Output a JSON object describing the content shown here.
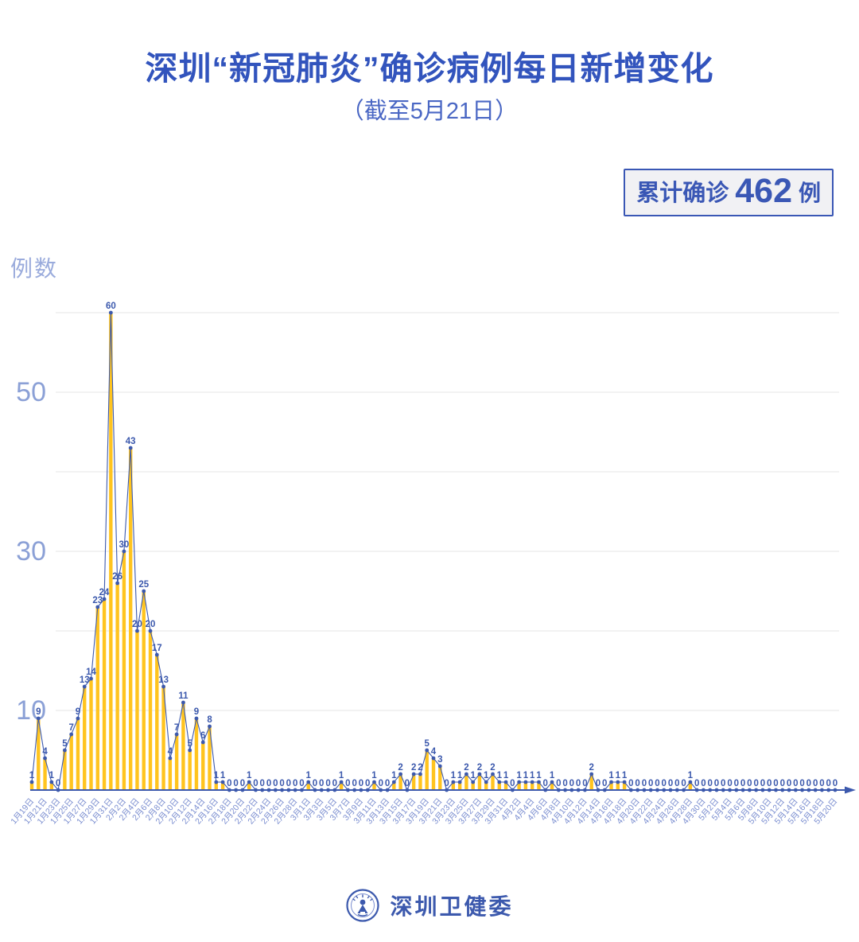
{
  "title": "深圳“新冠肺炎”确诊病例每日新增变化",
  "subtitle": "（截至5月21日）",
  "badge": {
    "prefix": "累计确诊",
    "value": "462",
    "suffix": "例"
  },
  "y_axis_title": "例数",
  "footer": {
    "org_name": "深圳卫健委",
    "logo": "shenzhen-health-commission-emblem"
  },
  "colors": {
    "title_blue": "#3254bd",
    "accent_blue": "#3c59ad",
    "bar_yellow": "#ffc41f",
    "x_label_blue": "#7b8ed0",
    "y_tick_blue": "#8ba0d6",
    "grid_gray": "#eaeaea",
    "badge_bg": "#f1f1f4",
    "badge_border": "#3a57b5"
  },
  "chart_data": {
    "type": "bar",
    "line_overlay": true,
    "title": "深圳“新冠肺炎”确诊病例每日新增变化（截至5月21日）",
    "xlabel": "",
    "ylabel": "例数",
    "ylim": [
      0,
      63
    ],
    "yticks": [
      10,
      30,
      50
    ],
    "gridlines": [
      10,
      20,
      30,
      40,
      50,
      60
    ],
    "legend": "none",
    "x_tick_label_every": 2,
    "total_label": "累计确诊 462 例",
    "categories": [
      "1月19日",
      "1月20日",
      "1月21日",
      "1月22日",
      "1月23日",
      "1月24日",
      "1月25日",
      "1月26日",
      "1月27日",
      "1月28日",
      "1月29日",
      "1月30日",
      "1月31日",
      "2月1日",
      "2月2日",
      "2月3日",
      "2月4日",
      "2月5日",
      "2月6日",
      "2月7日",
      "2月8日",
      "2月9日",
      "2月10日",
      "2月11日",
      "2月12日",
      "2月13日",
      "2月14日",
      "2月15日",
      "2月16日",
      "2月17日",
      "2月18日",
      "2月19日",
      "2月20日",
      "2月21日",
      "2月22日",
      "2月23日",
      "2月24日",
      "2月25日",
      "2月26日",
      "2月27日",
      "2月28日",
      "2月29日",
      "3月1日",
      "3月2日",
      "3月3日",
      "3月4日",
      "3月5日",
      "3月6日",
      "3月7日",
      "3月8日",
      "3月9日",
      "3月10日",
      "3月11日",
      "3月12日",
      "3月13日",
      "3月14日",
      "3月15日",
      "3月16日",
      "3月17日",
      "3月18日",
      "3月19日",
      "3月20日",
      "3月21日",
      "3月22日",
      "3月23日",
      "3月24日",
      "3月25日",
      "3月26日",
      "3月27日",
      "3月28日",
      "3月29日",
      "3月30日",
      "3月31日",
      "4月1日",
      "4月2日",
      "4月3日",
      "4月4日",
      "4月5日",
      "4月6日",
      "4月7日",
      "4月8日",
      "4月9日",
      "4月10日",
      "4月11日",
      "4月12日",
      "4月13日",
      "4月14日",
      "4月15日",
      "4月16日",
      "4月17日",
      "4月18日",
      "4月19日",
      "4月20日",
      "4月21日",
      "4月22日",
      "4月23日",
      "4月24日",
      "4月25日",
      "4月26日",
      "4月27日",
      "4月28日",
      "4月29日",
      "4月30日",
      "5月1日",
      "5月2日",
      "5月3日",
      "5月4日",
      "5月5日",
      "5月6日",
      "5月7日",
      "5月8日",
      "5月9日",
      "5月10日",
      "5月11日",
      "5月12日",
      "5月13日",
      "5月14日",
      "5月15日",
      "5月16日",
      "5月17日",
      "5月18日",
      "5月19日",
      "5月20日"
    ],
    "values": [
      1,
      9,
      4,
      1,
      0,
      5,
      7,
      9,
      13,
      14,
      23,
      24,
      60,
      26,
      30,
      43,
      20,
      25,
      20,
      17,
      13,
      4,
      7,
      11,
      5,
      9,
      6,
      8,
      1,
      1,
      0,
      0,
      0,
      1,
      0,
      0,
      0,
      0,
      0,
      0,
      0,
      0,
      1,
      0,
      0,
      0,
      0,
      1,
      0,
      0,
      0,
      0,
      1,
      0,
      0,
      1,
      2,
      0,
      2,
      2,
      5,
      4,
      3,
      0,
      1,
      1,
      2,
      1,
      2,
      1,
      2,
      1,
      1,
      0,
      1,
      1,
      1,
      1,
      0,
      1,
      0,
      0,
      0,
      0,
      0,
      2,
      0,
      0,
      1,
      1,
      1,
      0,
      0,
      0,
      0,
      0,
      0,
      0,
      0,
      0,
      1,
      0,
      0,
      0,
      0,
      0,
      0,
      0,
      0,
      0,
      0,
      0,
      0,
      0,
      0,
      0,
      0,
      0,
      0,
      0,
      0,
      0,
      0
    ]
  }
}
